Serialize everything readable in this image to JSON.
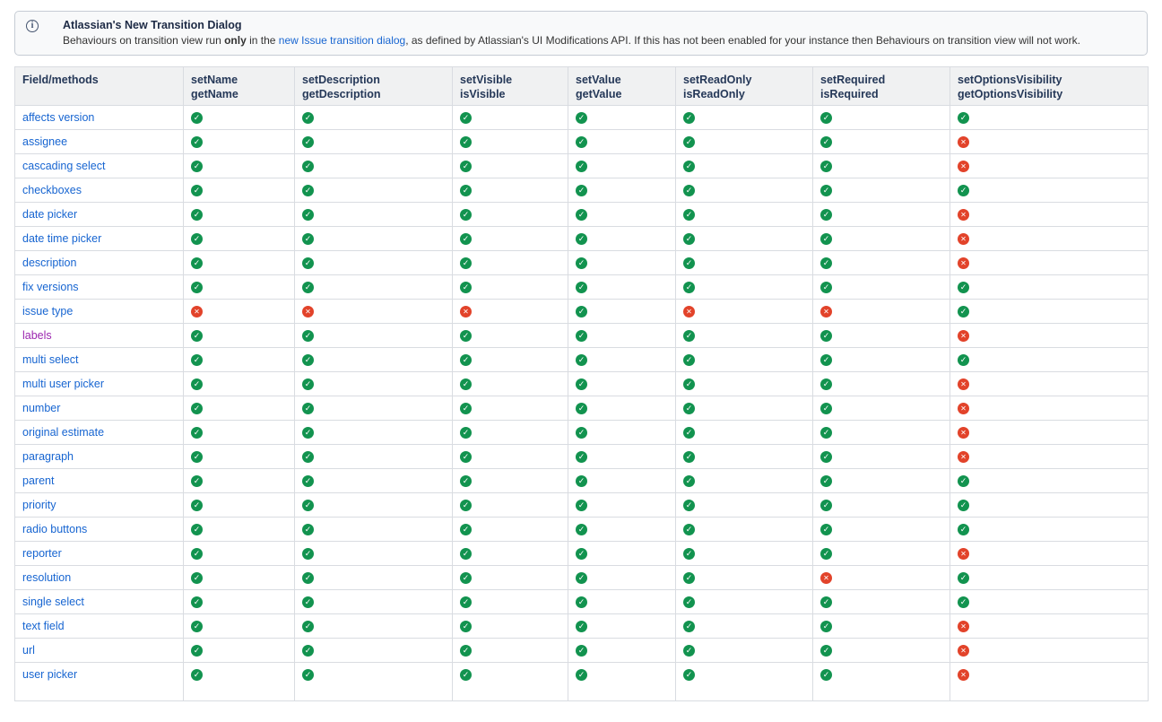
{
  "banner": {
    "icon": "info-icon",
    "title": "Atlassian's New Transition Dialog",
    "body_prefix": "Behaviours on transition view run ",
    "body_bold": "only",
    "body_mid": " in the ",
    "link_text": "new Issue transition dialog",
    "body_suffix": ", as defined by Atlassian's UI Modifications API. If this has not been enabled for your instance then Behaviours on transition view will not work."
  },
  "table": {
    "columns": [
      {
        "id": "field-methods",
        "line1": "Field/methods",
        "line2": ""
      },
      {
        "id": "setname",
        "line1": "setName",
        "line2": "getName"
      },
      {
        "id": "setdescription",
        "line1": "setDescription",
        "line2": "getDescription"
      },
      {
        "id": "setvisible",
        "line1": "setVisible",
        "line2": "isVisible"
      },
      {
        "id": "setvalue",
        "line1": "setValue",
        "line2": "getValue"
      },
      {
        "id": "setreadonly",
        "line1": "setReadOnly",
        "line2": "isReadOnly"
      },
      {
        "id": "setrequired",
        "line1": "setRequired",
        "line2": "isRequired"
      },
      {
        "id": "setoptionsvisibility",
        "line1": "setOptionsVisibility",
        "line2": "getOptionsVisibility"
      }
    ],
    "icon_legend": {
      "yes": "check-icon",
      "no": "cross-icon"
    },
    "rows": [
      {
        "field": "affects version",
        "visited": false,
        "support": [
          "yes",
          "yes",
          "yes",
          "yes",
          "yes",
          "yes",
          "yes"
        ]
      },
      {
        "field": "assignee",
        "visited": false,
        "support": [
          "yes",
          "yes",
          "yes",
          "yes",
          "yes",
          "yes",
          "no"
        ]
      },
      {
        "field": "cascading select",
        "visited": false,
        "support": [
          "yes",
          "yes",
          "yes",
          "yes",
          "yes",
          "yes",
          "no"
        ]
      },
      {
        "field": "checkboxes",
        "visited": false,
        "support": [
          "yes",
          "yes",
          "yes",
          "yes",
          "yes",
          "yes",
          "yes"
        ]
      },
      {
        "field": "date picker",
        "visited": false,
        "support": [
          "yes",
          "yes",
          "yes",
          "yes",
          "yes",
          "yes",
          "no"
        ]
      },
      {
        "field": "date time picker",
        "visited": false,
        "support": [
          "yes",
          "yes",
          "yes",
          "yes",
          "yes",
          "yes",
          "no"
        ]
      },
      {
        "field": "description",
        "visited": false,
        "support": [
          "yes",
          "yes",
          "yes",
          "yes",
          "yes",
          "yes",
          "no"
        ]
      },
      {
        "field": "fix versions",
        "visited": false,
        "support": [
          "yes",
          "yes",
          "yes",
          "yes",
          "yes",
          "yes",
          "yes"
        ]
      },
      {
        "field": "issue type",
        "visited": false,
        "support": [
          "no",
          "no",
          "no",
          "yes",
          "no",
          "no",
          "yes"
        ]
      },
      {
        "field": "labels",
        "visited": true,
        "support": [
          "yes",
          "yes",
          "yes",
          "yes",
          "yes",
          "yes",
          "no"
        ]
      },
      {
        "field": "multi select",
        "visited": false,
        "support": [
          "yes",
          "yes",
          "yes",
          "yes",
          "yes",
          "yes",
          "yes"
        ]
      },
      {
        "field": "multi user picker",
        "visited": false,
        "support": [
          "yes",
          "yes",
          "yes",
          "yes",
          "yes",
          "yes",
          "no"
        ]
      },
      {
        "field": "number",
        "visited": false,
        "support": [
          "yes",
          "yes",
          "yes",
          "yes",
          "yes",
          "yes",
          "no"
        ]
      },
      {
        "field": "original estimate",
        "visited": false,
        "support": [
          "yes",
          "yes",
          "yes",
          "yes",
          "yes",
          "yes",
          "no"
        ]
      },
      {
        "field": "paragraph",
        "visited": false,
        "support": [
          "yes",
          "yes",
          "yes",
          "yes",
          "yes",
          "yes",
          "no"
        ]
      },
      {
        "field": "parent",
        "visited": false,
        "support": [
          "yes",
          "yes",
          "yes",
          "yes",
          "yes",
          "yes",
          "yes"
        ]
      },
      {
        "field": "priority",
        "visited": false,
        "support": [
          "yes",
          "yes",
          "yes",
          "yes",
          "yes",
          "yes",
          "yes"
        ]
      },
      {
        "field": "radio buttons",
        "visited": false,
        "support": [
          "yes",
          "yes",
          "yes",
          "yes",
          "yes",
          "yes",
          "yes"
        ]
      },
      {
        "field": "reporter",
        "visited": false,
        "support": [
          "yes",
          "yes",
          "yes",
          "yes",
          "yes",
          "yes",
          "no"
        ]
      },
      {
        "field": "resolution",
        "visited": false,
        "support": [
          "yes",
          "yes",
          "yes",
          "yes",
          "yes",
          "no",
          "yes"
        ]
      },
      {
        "field": "single select",
        "visited": false,
        "support": [
          "yes",
          "yes",
          "yes",
          "yes",
          "yes",
          "yes",
          "yes"
        ]
      },
      {
        "field": "text field",
        "visited": false,
        "support": [
          "yes",
          "yes",
          "yes",
          "yes",
          "yes",
          "yes",
          "no"
        ]
      },
      {
        "field": "url",
        "visited": false,
        "support": [
          "yes",
          "yes",
          "yes",
          "yes",
          "yes",
          "yes",
          "no"
        ]
      },
      {
        "field": "user picker",
        "visited": false,
        "support": [
          "yes",
          "yes",
          "yes",
          "yes",
          "yes",
          "yes",
          "no"
        ]
      }
    ]
  },
  "colors": {
    "check_green": "#12934f",
    "cross_red": "#e2432a",
    "link_blue": "#1765d1",
    "visited_purple": "#9c27b0",
    "banner_ink": "#44546f",
    "header_text": "#253858"
  }
}
